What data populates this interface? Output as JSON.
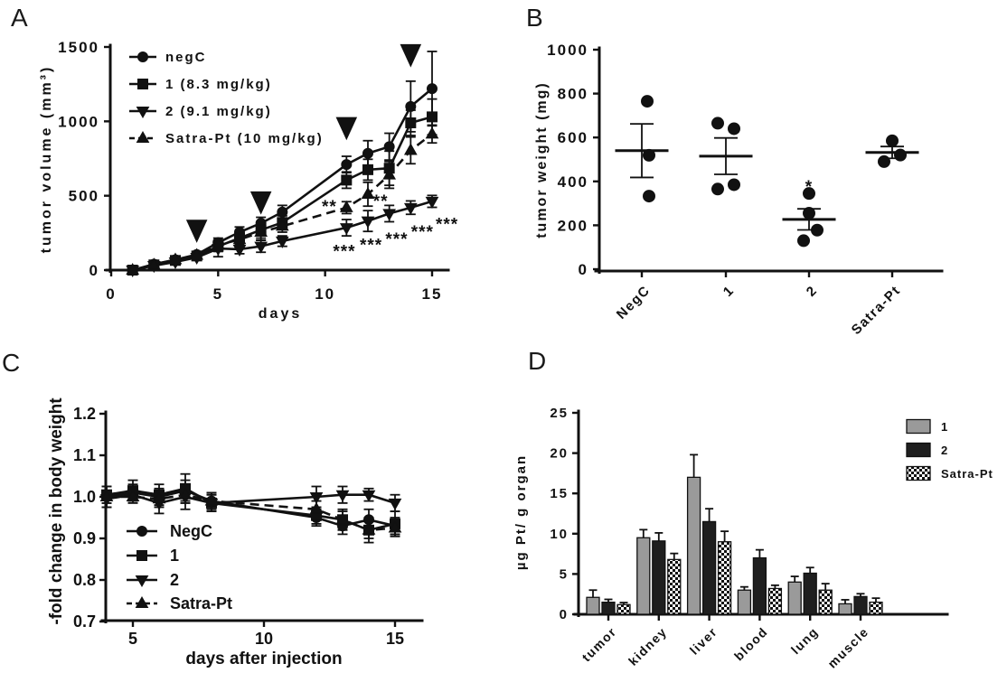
{
  "figure": {
    "background": "#ffffff"
  },
  "colors": {
    "ink": "#111111",
    "bar_gray": "#9a9a9a",
    "bar_black": "#1f1f1f",
    "checker_fg": "#111111",
    "checker_bg": "#ffffff"
  },
  "chart_data": [
    {
      "panel": "A",
      "type": "line",
      "xlabel": "days",
      "ylabel": "tumor volume (mm³)",
      "xticks": [
        {
          "v": 0,
          "t": "0"
        },
        {
          "v": 5,
          "t": "5"
        },
        {
          "v": 10,
          "t": "10"
        },
        {
          "v": 15,
          "t": "15"
        }
      ],
      "yticks": [
        {
          "v": 0,
          "t": "0"
        },
        {
          "v": 500,
          "t": "500"
        },
        {
          "v": 1000,
          "t": "1000"
        },
        {
          "v": 1500,
          "t": "1500"
        }
      ],
      "xlim": [
        0,
        15.8
      ],
      "ylim": [
        0,
        1500
      ],
      "x": [
        1,
        2,
        3,
        4,
        5,
        6,
        7,
        8,
        11,
        12,
        13,
        14,
        15
      ],
      "series": [
        {
          "name": "negC",
          "marker": "circle",
          "line": "solid",
          "values": [
            0,
            40,
            70,
            105,
            185,
            255,
            315,
            390,
            710,
            785,
            830,
            1100,
            1220
          ],
          "errors": [
            0,
            8,
            12,
            18,
            30,
            35,
            40,
            45,
            55,
            85,
            90,
            170,
            250
          ]
        },
        {
          "name": "1 (8.3 mg/kg)",
          "marker": "square",
          "line": "solid",
          "values": [
            0,
            35,
            65,
            95,
            160,
            215,
            270,
            320,
            605,
            675,
            685,
            990,
            1030
          ],
          "errors": [
            0,
            8,
            12,
            18,
            35,
            35,
            55,
            45,
            55,
            70,
            115,
            85,
            120
          ]
        },
        {
          "name": "2 (9.1 mg/kg)",
          "marker": "triangle-down",
          "line": "solid",
          "values": [
            0,
            30,
            55,
            85,
            145,
            140,
            160,
            195,
            285,
            330,
            380,
            420,
            462
          ],
          "errors": [
            0,
            8,
            12,
            18,
            55,
            30,
            40,
            35,
            55,
            70,
            55,
            45,
            40
          ]
        },
        {
          "name": "Satra-Pt (10 mg/kg)",
          "marker": "triangle-up",
          "line": "dashed",
          "values": [
            0,
            35,
            70,
            100,
            170,
            205,
            255,
            295,
            420,
            510,
            640,
            805,
            915
          ],
          "errors": [
            0,
            8,
            12,
            18,
            30,
            30,
            55,
            40,
            40,
            80,
            90,
            90,
            60
          ]
        }
      ],
      "injection_arrows": [
        {
          "day": 4,
          "value": 190
        },
        {
          "day": 7,
          "value": 380
        },
        {
          "day": 11,
          "value": 880
        },
        {
          "day": 14,
          "value": 1370
        }
      ],
      "significance": [
        {
          "text": "**",
          "day": 10.2,
          "value": 450
        },
        {
          "text": "**",
          "day": 12.6,
          "value": 487
        },
        {
          "text": "***",
          "day": 10.9,
          "value": 148
        },
        {
          "text": "***",
          "day": 12.15,
          "value": 190
        },
        {
          "text": "***",
          "day": 13.35,
          "value": 232
        },
        {
          "text": "***",
          "day": 14.55,
          "value": 278
        },
        {
          "text": "***",
          "day": 15.7,
          "value": 332
        }
      ]
    },
    {
      "panel": "B",
      "type": "scatter",
      "ylabel": "tumor weight (mg)",
      "yticks": [
        {
          "v": 0,
          "t": "0"
        },
        {
          "v": 200,
          "t": "200"
        },
        {
          "v": 400,
          "t": "400"
        },
        {
          "v": 600,
          "t": "600"
        },
        {
          "v": 800,
          "t": "800"
        },
        {
          "v": 1000,
          "t": "1000"
        }
      ],
      "ylim": [
        0,
        1000
      ],
      "groups": [
        {
          "label": "NegC",
          "points": [
            [
              6,
              765
            ],
            [
              8,
              519
            ],
            [
              8,
              333
            ]
          ],
          "mean": 540,
          "sem": 122,
          "sig": ""
        },
        {
          "label": "1",
          "points": [
            [
              -9,
              665
            ],
            [
              9,
              640
            ],
            [
              9,
              385
            ],
            [
              -9,
              365
            ]
          ],
          "mean": 515,
          "sem": 83,
          "sig": ""
        },
        {
          "label": "2",
          "points": [
            [
              0,
              345
            ],
            [
              0,
              255
            ],
            [
              9,
              178
            ],
            [
              -6,
              130
            ]
          ],
          "mean": 227,
          "sem": 48,
          "sig": "*"
        },
        {
          "label": "Satra-Pt",
          "points": [
            [
              0,
              585
            ],
            [
              9,
              520
            ],
            [
              -9,
              490
            ]
          ],
          "mean": 532,
          "sem": 27,
          "sig": ""
        }
      ]
    },
    {
      "panel": "C",
      "type": "line",
      "xlabel": "days after injection",
      "ylabel": "-fold change in body weight",
      "xticks": [
        {
          "v": 5,
          "t": "5"
        },
        {
          "v": 10,
          "t": "10"
        },
        {
          "v": 15,
          "t": "15"
        }
      ],
      "yticks": [
        {
          "v": 0.7,
          "t": "0.7"
        },
        {
          "v": 0.8,
          "t": "0.8"
        },
        {
          "v": 0.9,
          "t": "0.9"
        },
        {
          "v": 1.0,
          "t": "1.0"
        },
        {
          "v": 1.1,
          "t": "1.1"
        },
        {
          "v": 1.2,
          "t": "1.2"
        }
      ],
      "xlim": [
        4,
        16
      ],
      "ylim": [
        0.7,
        1.2
      ],
      "x": [
        4,
        5,
        6,
        7,
        8,
        12,
        13,
        14,
        15
      ],
      "series": [
        {
          "name": "NegC",
          "marker": "circle",
          "line": "solid",
          "values": [
            1.0,
            1.01,
            1.0,
            1.015,
            0.99,
            0.95,
            0.93,
            0.945,
            0.93
          ],
          "errors": [
            0.025,
            0.02,
            0.02,
            0.025,
            0.02,
            0.02,
            0.02,
            0.025,
            0.02
          ]
        },
        {
          "name": "1",
          "marker": "square",
          "line": "solid",
          "values": [
            1.005,
            1.015,
            1.005,
            1.02,
            0.985,
            0.955,
            0.945,
            0.92,
            0.935
          ],
          "errors": [
            0.02,
            0.025,
            0.025,
            0.035,
            0.02,
            0.02,
            0.025,
            0.03,
            0.03
          ]
        },
        {
          "name": "2",
          "marker": "triangle-down",
          "line": "solid",
          "values": [
            0.995,
            1.005,
            0.985,
            1.0,
            0.985,
            1.0,
            1.005,
            1.005,
            0.985
          ],
          "errors": [
            0.02,
            0.015,
            0.025,
            0.03,
            0.02,
            0.025,
            0.02,
            0.015,
            0.02
          ]
        },
        {
          "name": "Satra-Pt",
          "marker": "triangle-up",
          "line": "dashed",
          "values": [
            1.0,
            1.0,
            0.995,
            1.005,
            0.99,
            0.97,
            0.945,
            0.92,
            0.925
          ],
          "errors": [
            0.015,
            0.015,
            0.02,
            0.02,
            0.015,
            0.02,
            0.02,
            0.02,
            0.02
          ]
        }
      ]
    },
    {
      "panel": "D",
      "type": "bar",
      "ylabel": "µg Pt/ g organ",
      "yticks": [
        {
          "v": 0,
          "t": "0"
        },
        {
          "v": 5,
          "t": "5"
        },
        {
          "v": 10,
          "t": "10"
        },
        {
          "v": 15,
          "t": "15"
        },
        {
          "v": 20,
          "t": "20"
        },
        {
          "v": 25,
          "t": "25"
        }
      ],
      "ylim": [
        0,
        25
      ],
      "categories": [
        "tumor",
        "kidney",
        "liver",
        "blood",
        "lung",
        "muscle"
      ],
      "series": [
        {
          "name": "1",
          "fill": "gray",
          "values": [
            2.1,
            9.5,
            17.0,
            3.0,
            4.0,
            1.3
          ],
          "errors": [
            0.9,
            1.0,
            2.8,
            0.4,
            0.7,
            0.5
          ]
        },
        {
          "name": "2",
          "fill": "black",
          "values": [
            1.5,
            9.1,
            11.5,
            7.0,
            5.1,
            2.2
          ],
          "errors": [
            0.35,
            1.0,
            1.6,
            1.0,
            0.7,
            0.35
          ]
        },
        {
          "name": "Satra-Pt",
          "fill": "checker",
          "values": [
            1.2,
            6.8,
            9.0,
            3.2,
            3.0,
            1.5
          ],
          "errors": [
            0.25,
            0.75,
            1.3,
            0.4,
            0.8,
            0.5
          ]
        }
      ]
    }
  ]
}
